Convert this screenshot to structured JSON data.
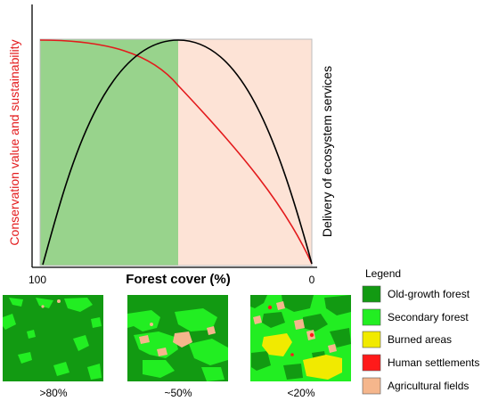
{
  "axes": {
    "left_label": "Conservation value and sustainability",
    "right_label": "Delivery of ecosystem services",
    "x_label": "Forest cover (%)",
    "x_tick_left": "100",
    "x_tick_right": "0"
  },
  "colors": {
    "zone_forest": "#98d38c",
    "zone_agri": "#fde3d6",
    "curve_conservation": "#e31a1c",
    "curve_services": "#000000"
  },
  "legend": {
    "title": "Legend",
    "items": [
      {
        "label": "Old-growth forest",
        "color": "#129a12"
      },
      {
        "label": "Secondary forest",
        "color": "#22ee22"
      },
      {
        "label": "Burned areas",
        "color": "#f1ea00"
      },
      {
        "label": "Human settlements",
        "color": "#ff1a1a"
      },
      {
        "label": "Agricultural fields",
        "color": "#f5b68c"
      }
    ]
  },
  "maps": [
    {
      "caption": ">80%"
    },
    {
      "caption": "~50%"
    },
    {
      "caption": "<20%"
    }
  ]
}
